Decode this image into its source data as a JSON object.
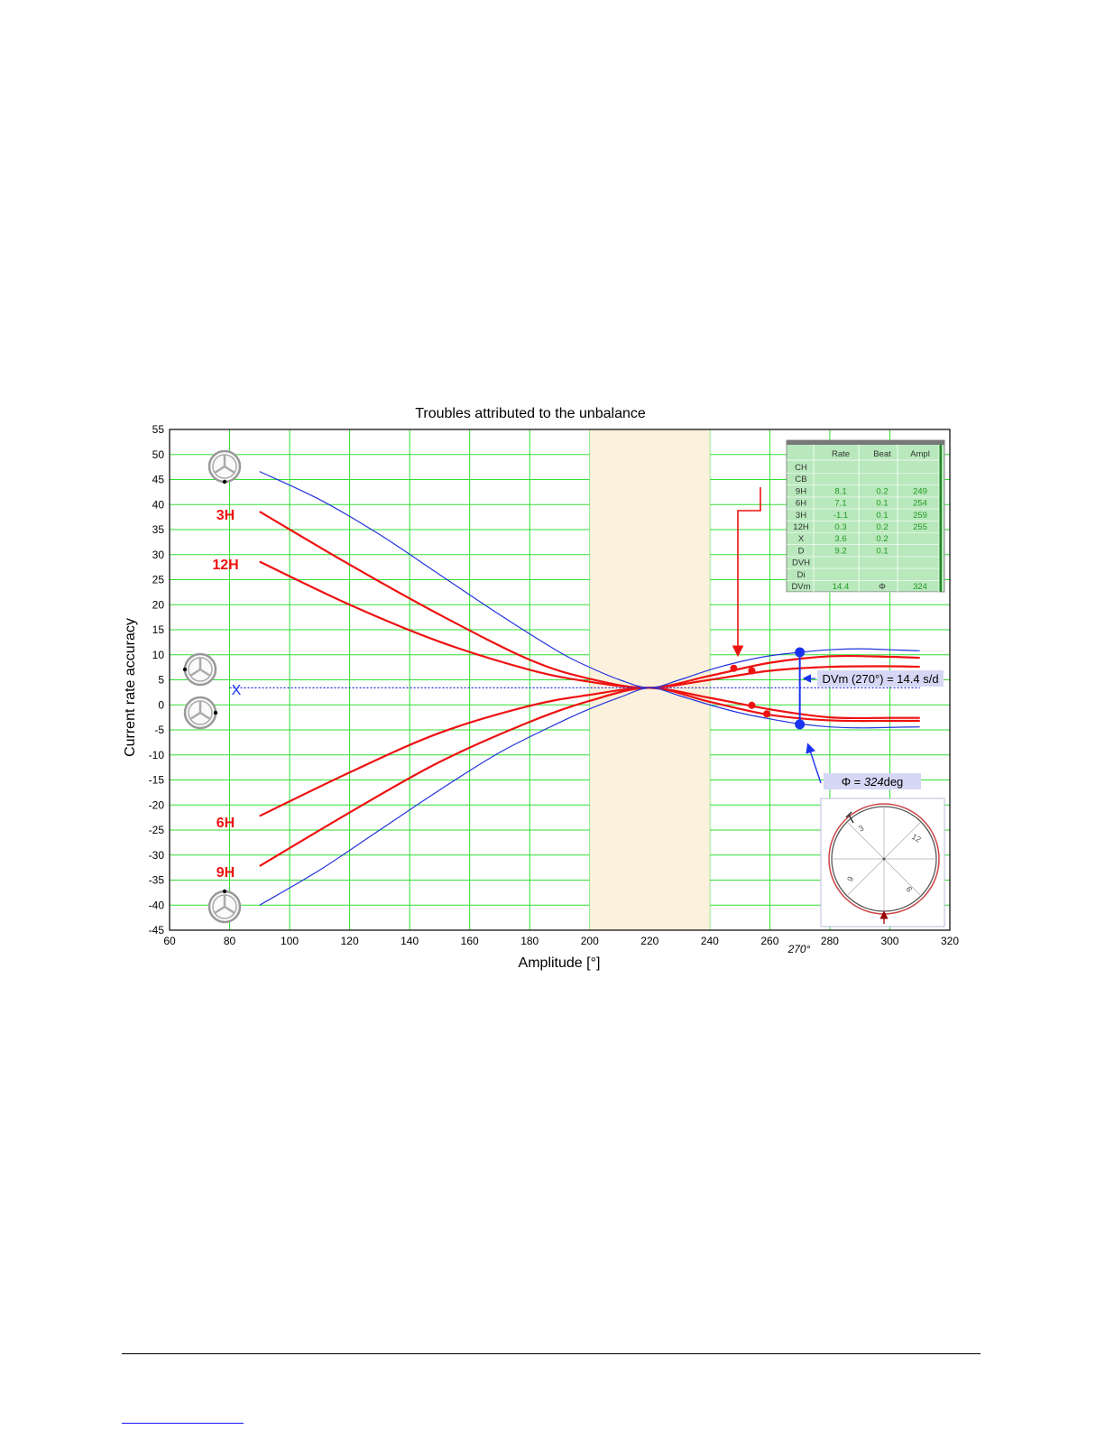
{
  "chart_data": {
    "type": "line",
    "title": "Troubles attributed to the unbalance",
    "xlabel": "Amplitude [°]",
    "ylabel": "Current rate accuracy",
    "xlim": [
      60,
      320
    ],
    "ylim": [
      -45,
      55
    ],
    "xticks": [
      60,
      80,
      100,
      120,
      140,
      160,
      180,
      200,
      220,
      240,
      260,
      280,
      300,
      320
    ],
    "yticks": [
      55,
      50,
      45,
      40,
      35,
      30,
      25,
      20,
      15,
      10,
      5,
      0,
      -5,
      -10,
      -15,
      -20,
      -25,
      -30,
      -35,
      -40,
      -45
    ],
    "grid": true,
    "grid_color": "#33dd33",
    "highlight_band": {
      "x": [
        200,
        240
      ],
      "color": "#fbf1dc"
    },
    "x_extra_label": "270°",
    "series": [
      {
        "name": "3H",
        "color": "#ee1111",
        "width": 2.2,
        "x": [
          90,
          120,
          150,
          180,
          200,
          220,
          240,
          260,
          280,
          300,
          310
        ],
        "y": [
          38.6,
          28.0,
          18.0,
          9.0,
          5.2,
          3.4,
          5.8,
          8.4,
          9.7,
          9.6,
          9.4
        ]
      },
      {
        "name": "12H",
        "color": "#ee1111",
        "width": 2.2,
        "x": [
          90,
          120,
          150,
          180,
          200,
          220,
          240,
          260,
          280,
          300,
          310
        ],
        "y": [
          28.6,
          20.0,
          12.6,
          7.0,
          4.6,
          3.4,
          5.0,
          6.8,
          7.6,
          7.7,
          7.6
        ]
      },
      {
        "name": "6H",
        "color": "#ee1111",
        "width": 2.2,
        "x": [
          90,
          120,
          150,
          180,
          200,
          220,
          240,
          260,
          280,
          300,
          310
        ],
        "y": [
          -22.2,
          -13.5,
          -5.6,
          -0.2,
          2.0,
          3.4,
          1.4,
          -0.9,
          -2.5,
          -2.6,
          -2.6
        ]
      },
      {
        "name": "9H",
        "color": "#ee1111",
        "width": 2.2,
        "x": [
          90,
          120,
          150,
          180,
          200,
          220,
          240,
          260,
          280,
          300,
          310
        ],
        "y": [
          -32.2,
          -21.5,
          -11.4,
          -3.4,
          0.8,
          3.4,
          0.6,
          -2.0,
          -3.1,
          -3.2,
          -3.2
        ]
      },
      {
        "name": "",
        "color": "#2233dd",
        "width": 1.2,
        "x": [
          90,
          110,
          130,
          150,
          170,
          190,
          200,
          210,
          220,
          230,
          240,
          250,
          260,
          270,
          280,
          290,
          300,
          310
        ],
        "y": [
          46.6,
          41.0,
          34.0,
          26.0,
          18.0,
          10.5,
          7.5,
          5.0,
          3.4,
          5.0,
          7.0,
          8.6,
          9.8,
          10.5,
          11.0,
          11.2,
          11.0,
          10.8
        ]
      },
      {
        "name": "",
        "color": "#2233dd",
        "width": 1.2,
        "x": [
          90,
          110,
          130,
          150,
          170,
          190,
          200,
          210,
          220,
          230,
          240,
          250,
          260,
          270,
          280,
          290,
          300,
          310
        ],
        "y": [
          -40.0,
          -33.0,
          -25.0,
          -17.0,
          -9.5,
          -3.5,
          -0.8,
          1.5,
          3.4,
          1.8,
          0.0,
          -1.6,
          -2.8,
          -3.8,
          -4.4,
          -4.6,
          -4.5,
          -4.4
        ]
      },
      {
        "name": "X",
        "color": "#2233dd",
        "width": 1.2,
        "dashed": true,
        "x": [
          80,
          310
        ],
        "y": [
          3.4,
          3.4
        ]
      }
    ],
    "markers": [
      {
        "x": 248,
        "y": 7.3,
        "color": "#ee1111",
        "r": 4
      },
      {
        "x": 254,
        "y": 6.8,
        "color": "#ee1111",
        "r": 4
      },
      {
        "x": 254,
        "y": -0.1,
        "color": "#ee1111",
        "r": 4
      },
      {
        "x": 259,
        "y": -1.8,
        "color": "#ee1111",
        "r": 4
      },
      {
        "x": 270,
        "y": 10.5,
        "color": "#1a33ee",
        "r": 5.5
      },
      {
        "x": 270,
        "y": -3.9,
        "color": "#1a33ee",
        "r": 5.5
      }
    ],
    "dvm_bar": {
      "x": 270,
      "y1": 10.5,
      "y2": -3.9,
      "color": "#1a33ee"
    },
    "annotations": {
      "dvm_label": "DVm (270°) = 14.4 s/d",
      "phi_label_prefix": "Φ = ",
      "phi_value": "324",
      "phi_label_suffix": "deg"
    },
    "position_labels": [
      {
        "text": "3H",
        "color": "#ee1111"
      },
      {
        "text": "12H",
        "color": "#ee1111"
      },
      {
        "text": "6H",
        "color": "#ee1111"
      },
      {
        "text": "9H",
        "color": "#ee1111"
      },
      {
        "text": "X",
        "color": "#1a33ee"
      }
    ],
    "table": {
      "headers": [
        "",
        "Rate",
        "Beat",
        "Ampl"
      ],
      "rows": [
        [
          "CH",
          "",
          "",
          ""
        ],
        [
          "CB",
          "",
          "",
          ""
        ],
        [
          "9H",
          "8.1",
          "0.2",
          "249"
        ],
        [
          "6H",
          "7.1",
          "0.1",
          "254"
        ],
        [
          "3H",
          "-1.1",
          "0.1",
          "259"
        ],
        [
          "12H",
          "0.3",
          "0.2",
          "255"
        ],
        [
          "X",
          "3.6",
          "0.2",
          ""
        ],
        [
          "D",
          "9.2",
          "0.1",
          ""
        ],
        [
          "DVH",
          "",
          "",
          ""
        ],
        [
          "Di",
          "",
          "",
          ""
        ],
        [
          "DVm",
          "14.4",
          "Φ",
          "324"
        ]
      ],
      "background": "#b8e8bc",
      "value_color": "#229922"
    },
    "dial": {
      "labels": [
        "9",
        "12",
        "3",
        "6"
      ],
      "ring_color": "#cc4444"
    }
  }
}
